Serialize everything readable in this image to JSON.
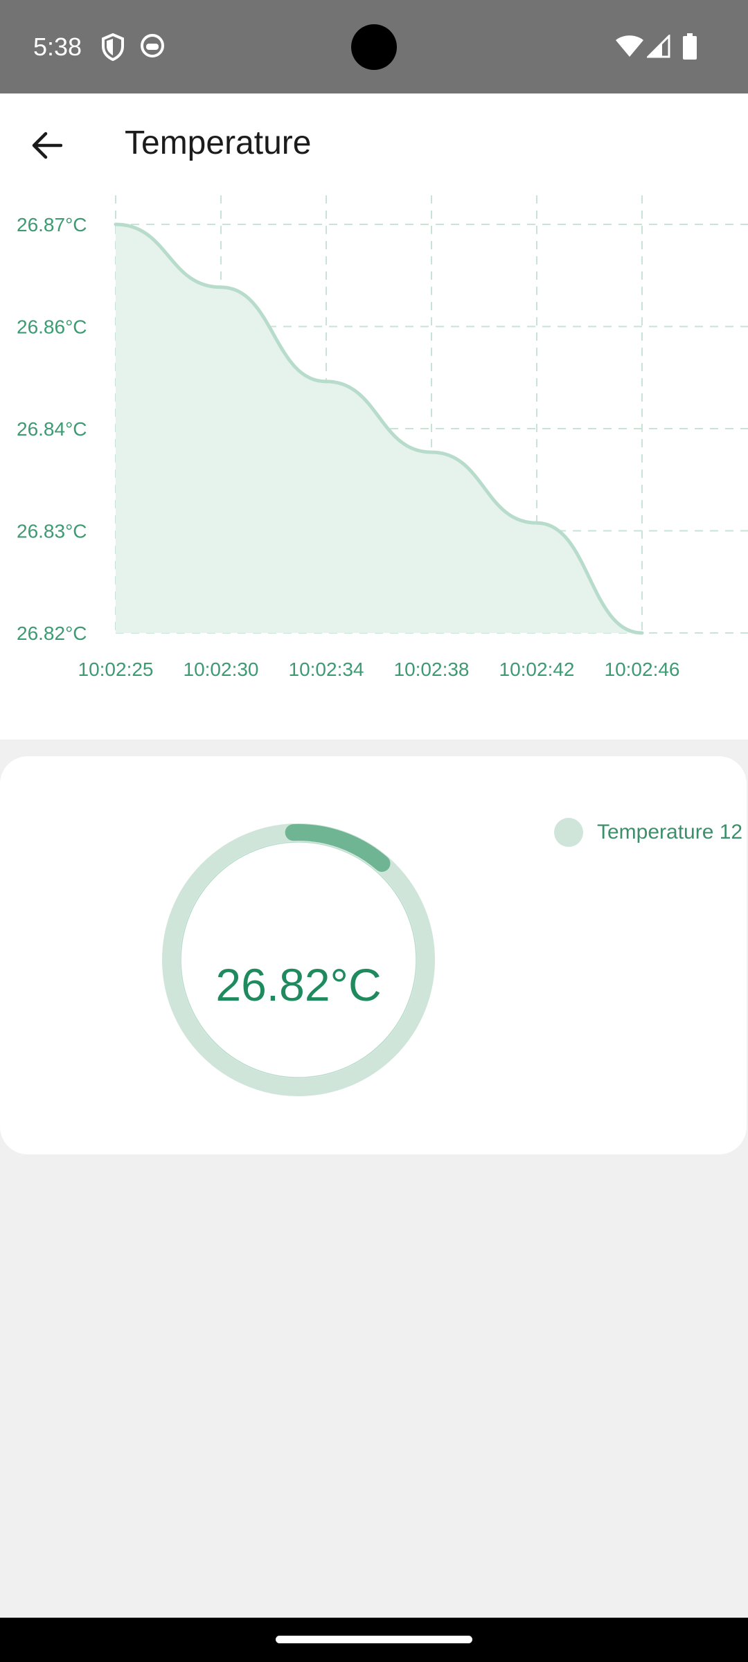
{
  "status_bar": {
    "time": "5:38",
    "left_icons": [
      "shield-icon",
      "cat-icon"
    ],
    "right_icons": [
      "wifi-icon",
      "signal-icon",
      "battery-icon"
    ]
  },
  "app_bar": {
    "title": "Temperature",
    "back_icon": "arrow-back-icon"
  },
  "colors": {
    "accent": "#1f8a5e",
    "line": "#b8dccb",
    "fill": "#e6f3ec",
    "grid": "#c9e3d7",
    "axis_text": "#3d9a72"
  },
  "chart_data": {
    "type": "area",
    "x": [
      "10:02:25",
      "10:02:30",
      "10:02:34",
      "10:02:38",
      "10:02:42",
      "10:02:46"
    ],
    "values": [
      26.872,
      26.864,
      26.852,
      26.843,
      26.834,
      26.82
    ],
    "ytick_labels": [
      "26.87°C",
      "26.86°C",
      "26.84°C",
      "26.83°C",
      "26.82°C"
    ],
    "ylim": [
      26.82,
      26.872
    ],
    "grid": true,
    "title": "",
    "xlabel": "",
    "ylabel": ""
  },
  "gauge": {
    "value_text": "26.82°C",
    "arc_fraction": 0.12,
    "legend_label": "Temperature 12"
  }
}
